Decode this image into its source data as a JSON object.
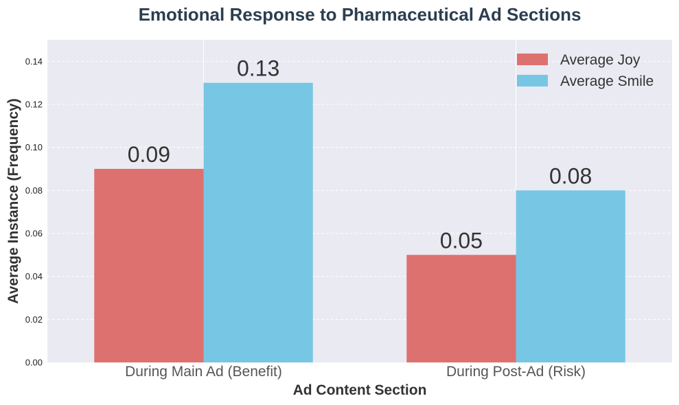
{
  "chart_data": {
    "type": "bar",
    "title": "Emotional Response to Pharmaceutical Ad Sections",
    "xlabel": "Ad Content Section",
    "ylabel": "Average Instance (Frequency)",
    "categories": [
      "During Main Ad (Benefit)",
      "During Post-Ad (Risk)"
    ],
    "series": [
      {
        "name": "Average Joy",
        "values": [
          0.09,
          0.05
        ],
        "labels": [
          "0.09",
          "0.05"
        ],
        "color": "#dd716f"
      },
      {
        "name": "Average Smile",
        "values": [
          0.13,
          0.08
        ],
        "labels": [
          "0.13",
          "0.08"
        ],
        "color": "#77c6e3"
      }
    ],
    "ylim": [
      0,
      0.15
    ],
    "yticks": [
      "0.00",
      "0.02",
      "0.04",
      "0.06",
      "0.08",
      "0.10",
      "0.12",
      "0.14"
    ],
    "grid": true,
    "legend_position": "top-right",
    "plot_background": "#eaeaf2"
  }
}
